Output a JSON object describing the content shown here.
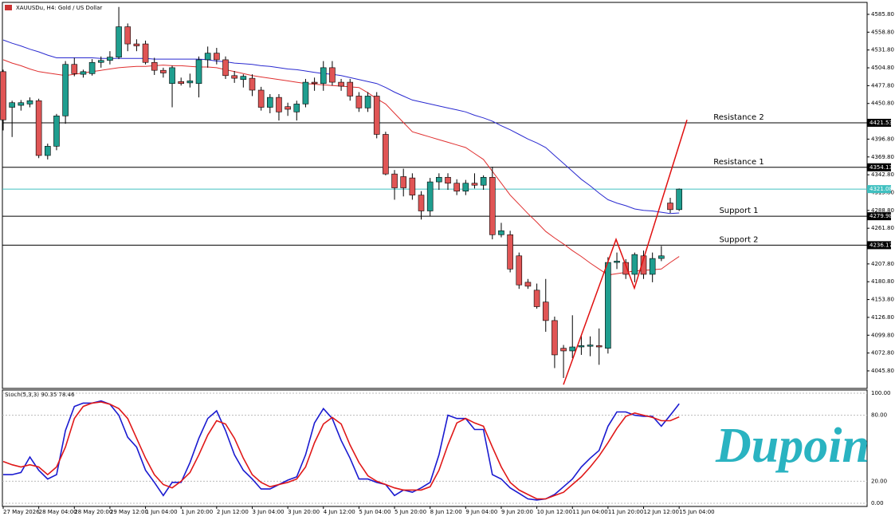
{
  "chart_data": [
    {
      "type": "candlestick",
      "title": "XAUUSDu, H4: Gold / US Dollar",
      "categories": [
        "27 May 2026",
        null,
        null,
        null,
        "28 May 04:00",
        null,
        null,
        null,
        "28 May 20:00",
        null,
        null,
        null,
        "29 May 12:00",
        null,
        null,
        null,
        "1 Jun 04:00",
        null,
        null,
        null,
        "1 Jun 20:00",
        null,
        null,
        null,
        "2 Jun 12:00",
        null,
        null,
        null,
        "3 Jun 04:00",
        null,
        null,
        null,
        "3 Jun 20:00",
        null,
        null,
        null,
        "4 Jun 12:00",
        null,
        null,
        null,
        "5 Jun 04:00",
        null,
        null,
        null,
        "5 Jun 20:00",
        null,
        null,
        null,
        "8 Jun 12:00",
        null,
        null,
        null,
        "9 Jun 04:00",
        null,
        null,
        null,
        "9 Jun 20:00",
        null,
        null,
        null,
        "10 Jun 12:00",
        null,
        null,
        null,
        "11 Jun 04:00",
        null,
        null,
        null,
        "11 Jun 20:00",
        null,
        null,
        null,
        "12 Jun 12:00",
        null,
        null,
        null,
        "15 Jun 04:00"
      ],
      "open": [
        4499,
        4445,
        4448,
        4450,
        4455,
        4372,
        4386,
        4432,
        4510,
        4495,
        4496,
        4513,
        4516,
        4521,
        4567,
        4541,
        4541,
        4513,
        4501,
        4481,
        4484,
        4482,
        4481,
        4517,
        4527,
        4517,
        4493,
        4487,
        4489,
        4471,
        4445,
        4460,
        4446,
        4438,
        4450,
        4483,
        4481,
        4505,
        4483,
        4483,
        4462,
        4444,
        4462,
        4404,
        4344,
        4340,
        4338,
        4312,
        4288,
        4332,
        4339,
        4330,
        4318,
        4330,
        4327,
        4339,
        4252,
        4252,
        4220,
        4180,
        4168,
        4150,
        4122,
        4080,
        4076,
        4082,
        4083,
        4084,
        4080,
        4210,
        4210,
        4192,
        4220,
        4192,
        4216,
        4300,
        4290
      ],
      "high": [
        4502,
        4455,
        4456,
        4460,
        4458,
        4390,
        4435,
        4515,
        4520,
        4502,
        4518,
        4522,
        4530,
        4597,
        4572,
        4548,
        4546,
        4520,
        4505,
        4508,
        4490,
        4496,
        4522,
        4537,
        4535,
        4522,
        4500,
        4495,
        4495,
        4476,
        4465,
        4465,
        4452,
        4455,
        4488,
        4490,
        4515,
        4515,
        4488,
        4488,
        4468,
        4468,
        4468,
        4408,
        4350,
        4352,
        4345,
        4318,
        4338,
        4345,
        4345,
        4336,
        4335,
        4345,
        4342,
        4355,
        4270,
        4258,
        4225,
        4185,
        4178,
        4185,
        4128,
        4085,
        4130,
        4100,
        4098,
        4110,
        4218,
        4225,
        4215,
        4225,
        4228,
        4225,
        4235,
        4308,
        4322
      ],
      "low": [
        4410,
        4400,
        4440,
        4445,
        4368,
        4366,
        4380,
        4420,
        4492,
        4490,
        4493,
        4505,
        4510,
        4518,
        4530,
        4530,
        4510,
        4494,
        4490,
        4445,
        4478,
        4475,
        4460,
        4505,
        4510,
        4488,
        4482,
        4475,
        4462,
        4440,
        4436,
        4425,
        4432,
        4425,
        4445,
        4470,
        4470,
        4478,
        4470,
        4455,
        4438,
        4438,
        4398,
        4342,
        4305,
        4310,
        4305,
        4275,
        4280,
        4320,
        4320,
        4312,
        4312,
        4322,
        4320,
        4245,
        4248,
        4195,
        4170,
        4170,
        4140,
        4105,
        4050,
        4035,
        4065,
        4070,
        4068,
        4055,
        4072,
        4200,
        4185,
        4180,
        4185,
        4180,
        4212,
        4285,
        4288
      ],
      "close": [
        4426,
        4452,
        4452,
        4455,
        4372,
        4386,
        4432,
        4510,
        4496,
        4499,
        4513,
        4516,
        4521,
        4567,
        4541,
        4538,
        4513,
        4501,
        4497,
        4505,
        4481,
        4485,
        4517,
        4527,
        4517,
        4493,
        4489,
        4492,
        4471,
        4445,
        4460,
        4438,
        4442,
        4450,
        4483,
        4481,
        4505,
        4483,
        4477,
        4462,
        4444,
        4462,
        4404,
        4344,
        4323,
        4323,
        4312,
        4288,
        4332,
        4339,
        4330,
        4318,
        4330,
        4327,
        4339,
        4252,
        4258,
        4200,
        4176,
        4174,
        4143,
        4122,
        4070,
        4076,
        4082,
        4084,
        4085,
        4082,
        4210,
        4212,
        4192,
        4222,
        4192,
        4216,
        4220,
        4290,
        4321.08
      ],
      "up_color": "#1f9e8f",
      "down_color": "#e05555",
      "overlays": [
        {
          "color": "#2a2ad0",
          "values": [
            4547,
            4542,
            4538,
            4533,
            4529,
            4524,
            4520,
            4520,
            4520,
            4520,
            4520,
            4519,
            4519,
            4519,
            4519,
            4519,
            4519,
            4518,
            4518,
            4518,
            4518,
            4518,
            4518,
            4517,
            4515,
            4514,
            4512,
            4511,
            4510,
            4508,
            4507,
            4505,
            4503,
            4502,
            4500,
            4498,
            4496,
            4495,
            4493,
            4490,
            4487,
            4484,
            4481,
            4475,
            4468,
            4462,
            4456,
            4453,
            4450,
            4447,
            4444,
            4441,
            4438,
            4433,
            4429,
            4424,
            4417,
            4411,
            4404,
            4397,
            4391,
            4384,
            4372,
            4360,
            4348,
            4336,
            4326,
            4315,
            4305,
            4300,
            4296,
            4291,
            4289,
            4288,
            4286,
            4284,
            4285
          ]
        },
        {
          "color": "#e03030",
          "values": [
            4517,
            4512,
            4508,
            4503,
            4499,
            4497,
            4495,
            4493,
            4495,
            4497,
            4499,
            4501,
            4503,
            4505,
            4506,
            4507,
            4507,
            4508,
            4509,
            4508,
            4508,
            4507,
            4506,
            4506,
            4505,
            4502,
            4499,
            4496,
            4493,
            4491,
            4489,
            4487,
            4485,
            4483,
            4481,
            4480,
            4479,
            4478,
            4477,
            4476,
            4475,
            4467,
            4458,
            4450,
            4436,
            4422,
            4408,
            4404,
            4400,
            4396,
            4392,
            4388,
            4384,
            4375,
            4366,
            4348,
            4330,
            4312,
            4298,
            4284,
            4271,
            4257,
            4247,
            4238,
            4228,
            4219,
            4209,
            4200,
            4191,
            4193,
            4195,
            4197,
            4198,
            4199,
            4200,
            4210,
            4219
          ]
        }
      ],
      "levels": [
        {
          "label": "Resistance 2",
          "value": 4421.53
        },
        {
          "label": "Resistance 1",
          "value": 4354.13
        },
        {
          "label": "Support 1",
          "value": 4279.98
        },
        {
          "label": "Support 2",
          "value": 4236.17
        }
      ],
      "last_price": 4321.08,
      "last_price_color": "#40c0c0",
      "zigzag": [
        4025,
        4245,
        4171,
        4426
      ],
      "zigzag_color": "#e01010",
      "ylim": [
        4019.2,
        4603.9
      ],
      "yticks": [
        {
          "value": 4585.8,
          "label": "4585.80"
        },
        {
          "value": 4558.8,
          "label": "4558.80"
        },
        {
          "value": 4531.8,
          "label": "4531.80"
        },
        {
          "value": 4504.8,
          "label": "4504.80"
        },
        {
          "value": 4477.8,
          "label": "4477.80"
        },
        {
          "value": 4450.8,
          "label": "4450.80"
        },
        {
          "value": 4396.8,
          "label": "4396.80"
        },
        {
          "value": 4369.8,
          "label": "4369.80"
        },
        {
          "value": 4342.8,
          "label": "4342.80"
        },
        {
          "value": 4315.8,
          "label": "4315.80"
        },
        {
          "value": 4288.8,
          "label": "4288.80"
        },
        {
          "value": 4261.8,
          "label": "4261.80"
        },
        {
          "value": 4207.8,
          "label": "4207.80"
        },
        {
          "value": 4180.8,
          "label": "4180.80"
        },
        {
          "value": 4153.8,
          "label": "4153.80"
        },
        {
          "value": 4126.8,
          "label": "4126.80"
        },
        {
          "value": 4099.8,
          "label": "4099.80"
        },
        {
          "value": 4072.8,
          "label": "4072.80"
        },
        {
          "value": 4045.8,
          "label": "4045.80"
        }
      ]
    },
    {
      "type": "line",
      "title": "Stoch(5,3,3) 90.35 78.46",
      "series": [
        {
          "color": "#1a1ad0",
          "values": [
            26,
            26,
            28,
            42,
            30,
            22,
            26,
            66,
            88,
            91,
            91,
            93,
            90,
            80,
            60,
            51,
            30,
            19,
            7,
            19,
            19,
            37,
            59,
            77,
            84,
            66,
            44,
            30,
            22,
            13,
            13,
            17,
            21,
            24,
            44,
            73,
            86,
            77,
            57,
            41,
            22,
            22,
            19,
            17,
            7,
            12,
            10,
            14,
            19,
            44,
            80,
            77,
            77,
            67,
            67,
            26,
            22,
            14,
            9,
            4,
            3,
            4,
            8,
            15,
            22,
            33,
            41,
            48,
            70,
            83,
            83,
            80,
            79,
            79,
            70,
            80,
            90.35
          ]
        },
        {
          "color": "#e01818",
          "values": [
            38,
            35,
            33,
            35,
            33,
            26,
            33,
            51,
            77,
            88,
            91,
            92,
            90,
            86,
            77,
            59,
            41,
            26,
            17,
            14,
            20,
            28,
            44,
            62,
            75,
            72,
            59,
            41,
            26,
            19,
            15,
            17,
            19,
            22,
            33,
            55,
            72,
            78,
            72,
            53,
            37,
            25,
            20,
            17,
            14,
            12,
            12,
            12,
            15,
            30,
            53,
            73,
            77,
            73,
            70,
            51,
            33,
            19,
            12,
            8,
            4,
            4,
            7,
            10,
            17,
            24,
            33,
            43,
            55,
            68,
            79,
            82,
            80,
            78,
            75,
            75,
            78.46
          ]
        }
      ],
      "ylim": [
        -2.9,
        102.9
      ],
      "yticks": [
        {
          "value": 100,
          "label": "100.00"
        },
        {
          "value": 80,
          "label": "80.00"
        },
        {
          "value": 20,
          "label": "20.00"
        },
        {
          "value": 0,
          "label": "0.00"
        }
      ],
      "grid": true
    }
  ],
  "logo": "Dupoin"
}
